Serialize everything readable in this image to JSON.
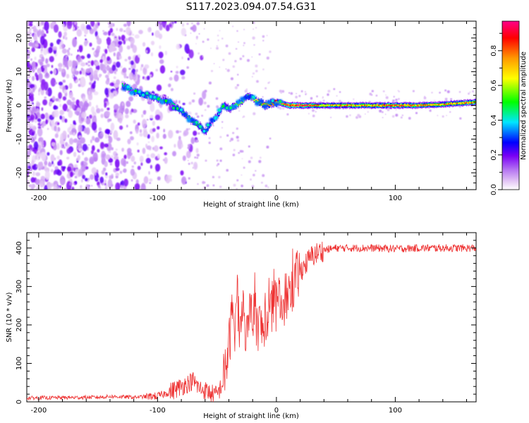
{
  "title": "S117.2023.094.07.54.G31",
  "chart_data": [
    {
      "type": "heatmap",
      "xlabel": "Height of straight line (km)",
      "ylabel": "Frequency (Hz)",
      "xlim": [
        -210,
        168
      ],
      "ylim": [
        -25,
        25
      ],
      "x_ticks": [
        -200,
        -100,
        0,
        100
      ],
      "y_ticks": [
        -20,
        -10,
        0,
        10,
        20
      ],
      "colorbar": {
        "label": "Normalized spectral amplitude",
        "range": [
          0,
          0.97
        ],
        "ticks": [
          0.0,
          0.2,
          0.4,
          0.6,
          0.8
        ],
        "colormap": [
          "#ffffff",
          "#e3c6f5",
          "#b472f2",
          "#7a00f5",
          "#0000ff",
          "#00e6ff",
          "#00ff00",
          "#ffff00",
          "#ff9900",
          "#ff0000",
          "#ff0088"
        ]
      },
      "ridge": {
        "x": [
          -130,
          -120,
          -110,
          -100,
          -90,
          -80,
          -70,
          -65,
          -60,
          -55,
          -50,
          -45,
          -40,
          -35,
          -30,
          -25,
          -20,
          -15,
          -10,
          -5,
          0,
          10,
          20,
          40,
          60,
          80,
          100,
          120,
          140,
          160,
          168
        ],
        "frequency": [
          6,
          4,
          3,
          2,
          1,
          -2,
          -5,
          -6,
          -8,
          -5,
          -3,
          0,
          -1,
          0,
          1,
          3,
          2,
          1,
          0,
          0.5,
          1,
          0,
          0,
          0,
          0,
          0,
          0,
          0,
          0.3,
          0.8,
          1.0
        ],
        "amplitude": [
          0.5,
          0.4,
          0.45,
          0.5,
          0.45,
          0.45,
          0.5,
          0.5,
          0.45,
          0.4,
          0.4,
          0.45,
          0.6,
          0.55,
          0.6,
          0.55,
          0.6,
          0.7,
          0.8,
          0.75,
          0.9,
          0.95,
          0.97,
          0.75,
          0.8,
          0.8,
          0.95,
          0.8,
          0.8,
          0.85,
          0.9
        ]
      },
      "noise_region_x": [
        -210,
        -100
      ]
    },
    {
      "type": "line",
      "xlabel": "Height of straight line (km)",
      "ylabel": "SNR (10 * v/v)",
      "xlim": [
        -210,
        168
      ],
      "ylim": [
        0,
        440
      ],
      "x_ticks": [
        -200,
        -100,
        0,
        100
      ],
      "y_ticks": [
        0,
        100,
        200,
        300,
        400
      ],
      "color": "#ee3333",
      "series": [
        {
          "x": [
            -210,
            -180,
            -150,
            -140,
            -120,
            -100,
            -90,
            -80,
            -70,
            -65,
            -60,
            -55,
            -50,
            -45,
            -40,
            -37,
            -35,
            -33,
            -30,
            -28,
            -25,
            -20,
            -15,
            -10,
            -5,
            0,
            5,
            10,
            15,
            20,
            25,
            30,
            40,
            50,
            60,
            80,
            100,
            120,
            140,
            168
          ],
          "values": [
            10,
            11,
            12,
            14,
            12,
            15,
            25,
            40,
            55,
            35,
            30,
            22,
            18,
            50,
            140,
            240,
            200,
            280,
            150,
            240,
            170,
            230,
            200,
            180,
            240,
            250,
            260,
            280,
            310,
            340,
            360,
            380,
            395,
            400,
            400,
            400,
            398,
            400,
            400,
            400
          ]
        }
      ]
    }
  ]
}
